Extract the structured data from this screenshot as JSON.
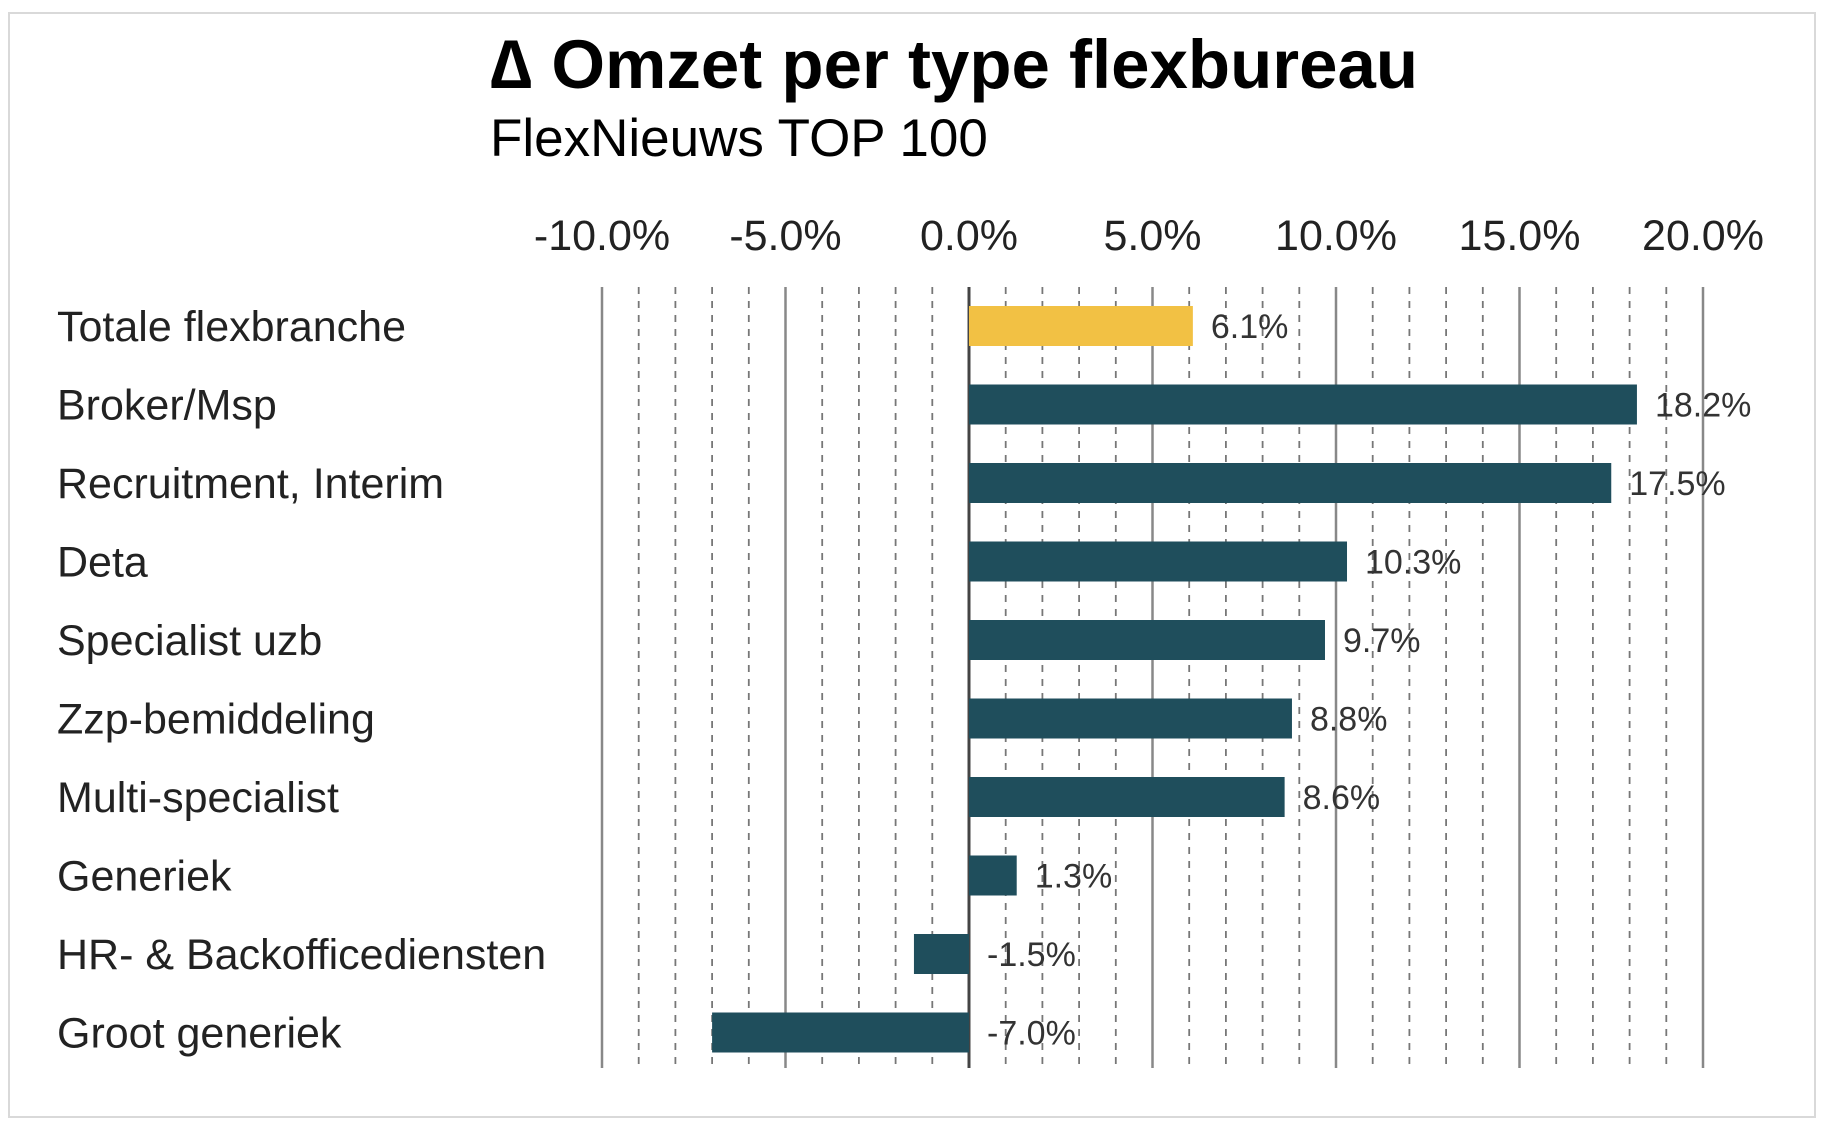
{
  "chart_data": {
    "type": "bar",
    "orientation": "horizontal",
    "title": "∆ Omzet per type flexbureau",
    "subtitle": "FlexNieuws TOP 100",
    "xlabel": "",
    "ylabel": "",
    "xlim": [
      -10,
      20
    ],
    "x_ticks": [
      -10,
      -5,
      0,
      5,
      10,
      15,
      20
    ],
    "x_tick_labels": [
      "-10.0%",
      "-5.0%",
      "0.0%",
      "5.0%",
      "10.0%",
      "15.0%",
      "20.0%"
    ],
    "x_axis_position": "top",
    "grid": {
      "major": "solid",
      "minor": "dashed",
      "minor_step": 1
    },
    "legend": "none",
    "categories": [
      "Totale flexbranche",
      "Broker/Msp",
      "Recruitment, Interim",
      "Deta",
      "Specialist uzb",
      "Zzp-bemiddeling",
      "Multi-specialist",
      "Generiek",
      "HR- & Backofficediensten",
      "Groot generiek"
    ],
    "values": [
      6.1,
      18.2,
      17.5,
      10.3,
      9.7,
      8.8,
      8.6,
      1.3,
      -1.5,
      -7.0
    ],
    "data_labels": [
      "6.1%",
      "18.2%",
      "17.5%",
      "10.3%",
      "9.7%",
      "8.8%",
      "8.6%",
      "1.3%",
      "-1.5%",
      "-7.0%"
    ],
    "colors": {
      "highlight": "#F2C144",
      "default": "#1F4E5C",
      "highlight_category": "Totale flexbranche"
    }
  }
}
